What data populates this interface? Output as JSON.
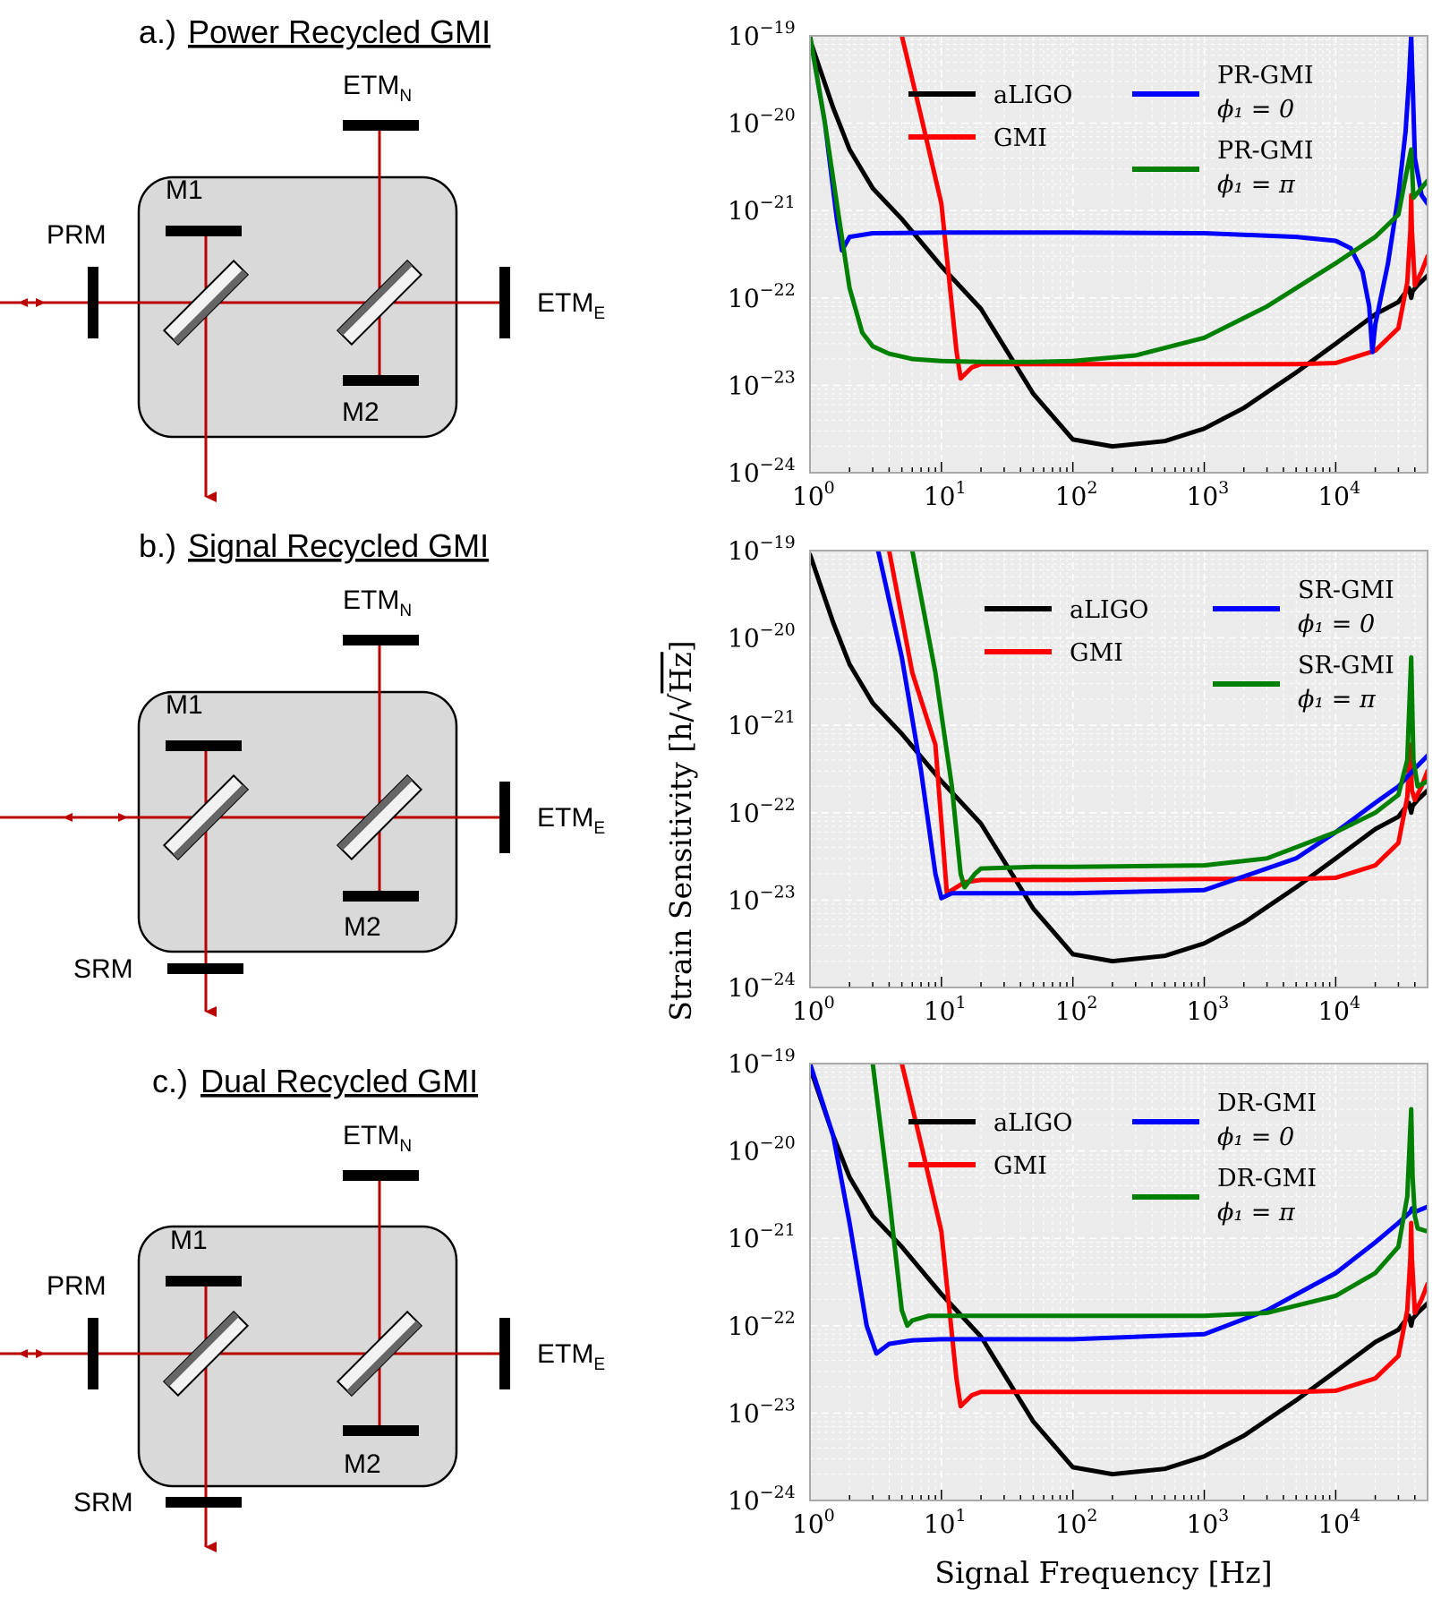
{
  "panels": [
    {
      "prefix": "a.)",
      "title": "Power Recycled GMI",
      "labels": {
        "etm_n": "ETM",
        "etm_n_sub": "N",
        "etm_e": "ETM",
        "etm_e_sub": "E",
        "m1": "M1",
        "m2": "M2",
        "prm": "PRM"
      }
    },
    {
      "prefix": "b.)",
      "title": "Signal Recycled GMI",
      "labels": {
        "etm_n": "ETM",
        "etm_n_sub": "N",
        "etm_e": "ETM",
        "etm_e_sub": "E",
        "m1": "M1",
        "m2": "M2",
        "srm": "SRM"
      }
    },
    {
      "prefix": "c.)",
      "title": "Dual Recycled GMI",
      "labels": {
        "etm_n": "ETM",
        "etm_n_sub": "N",
        "etm_e": "ETM",
        "etm_e_sub": "E",
        "m1": "M1",
        "m2": "M2",
        "prm": "PRM",
        "srm": "SRM"
      }
    }
  ],
  "axes": {
    "ylabel": "Strain Sensitivity",
    "ylabel_unit_num": "h",
    "ylabel_unit_den": "Hz",
    "xlabel": "Signal Frequency [Hz]"
  },
  "colors": {
    "aligo": "#000000",
    "gmi": "#ff0000",
    "phi0": "#0000ff",
    "phipi": "#008000",
    "beam": "#bb0000",
    "box": "#d9d9d9",
    "plotbg": "#ebebeb"
  },
  "chart_data": [
    {
      "type": "line",
      "title": "",
      "x_scale": "log",
      "y_scale": "log",
      "xlim": [
        1,
        50000
      ],
      "ylim": [
        1e-24,
        1e-19
      ],
      "xticks": [
        {
          "base": "10",
          "exp": "0"
        },
        {
          "base": "10",
          "exp": "1"
        },
        {
          "base": "10",
          "exp": "2"
        },
        {
          "base": "10",
          "exp": "3"
        },
        {
          "base": "10",
          "exp": "4"
        }
      ],
      "yticks": [
        {
          "base": "10",
          "exp": "−19"
        },
        {
          "base": "10",
          "exp": "−20"
        },
        {
          "base": "10",
          "exp": "−21"
        },
        {
          "base": "10",
          "exp": "−22"
        },
        {
          "base": "10",
          "exp": "−23"
        },
        {
          "base": "10",
          "exp": "−24"
        }
      ],
      "grid": true,
      "legend": [
        {
          "name": "aLIGO",
          "line2": ""
        },
        {
          "name": "GMI",
          "line2": ""
        },
        {
          "name": "PR-GMI",
          "line2": "ϕ₁ = 0"
        },
        {
          "name": "PR-GMI",
          "line2": "ϕ₁ = π"
        }
      ],
      "series": [
        {
          "name": "aLIGO",
          "x": [
            1,
            1.5,
            2,
            3,
            5,
            10,
            20,
            50,
            100,
            200,
            500,
            1000,
            2000,
            5000,
            10000,
            20000,
            30000,
            36000,
            37500,
            38500,
            42000,
            50000
          ],
          "y": [
            9e-20,
            1.5e-20,
            5e-21,
            1.8e-21,
            8e-22,
            2.3e-22,
            7.5e-23,
            8e-24,
            2.4e-24,
            2e-24,
            2.3e-24,
            3.2e-24,
            5.5e-24,
            1.4e-23,
            3e-23,
            6.5e-23,
            9e-23,
            1.3e-22,
            1e-22,
            1.2e-22,
            1.4e-22,
            1.8e-22
          ]
        },
        {
          "name": "GMI",
          "x": [
            5,
            7,
            10,
            13,
            14,
            17,
            20,
            50,
            100,
            1000,
            5000,
            10000,
            20000,
            30000,
            35000,
            37000,
            37500,
            38000,
            40000,
            45000,
            50000
          ],
          "y": [
            1e-19,
            1.2e-20,
            1.2e-21,
            2.5e-23,
            1.2e-23,
            1.6e-23,
            1.75e-23,
            1.75e-23,
            1.75e-23,
            1.75e-23,
            1.75e-23,
            1.8e-23,
            2.5e-23,
            4.5e-23,
            1.5e-22,
            6e-22,
            1.5e-21,
            6e-22,
            1.4e-22,
            2e-22,
            3e-22
          ]
        },
        {
          "name": "PR-GMI φ1=0",
          "x": [
            1,
            1.3,
            1.6,
            1.75,
            2,
            3,
            10,
            100,
            1000,
            5000,
            10000,
            13000,
            16000,
            18000,
            19000,
            20000,
            25000,
            30000,
            34000,
            36000,
            37500,
            38500,
            40000,
            45000,
            50000
          ],
          "y": [
            1e-19,
            1e-20,
            8e-22,
            3.5e-22,
            5e-22,
            5.5e-22,
            5.6e-22,
            5.6e-22,
            5.5e-22,
            5e-22,
            4.5e-22,
            3.7e-22,
            2e-22,
            8e-23,
            2.4e-23,
            5e-23,
            2.5e-22,
            1.5e-21,
            8e-21,
            3e-20,
            1e-19,
            3e-20,
            4e-21,
            1.5e-21,
            1.2e-21
          ]
        },
        {
          "name": "PR-GMI φ1=π",
          "x": [
            1,
            1.3,
            1.6,
            2,
            2.5,
            3,
            4,
            6,
            10,
            20,
            50,
            100,
            300,
            1000,
            3000,
            10000,
            20000,
            30000,
            35000,
            37500,
            39000,
            42000,
            50000
          ],
          "y": [
            1e-19,
            1e-20,
            1.2e-21,
            1.3e-22,
            4e-23,
            2.8e-23,
            2.3e-23,
            2e-23,
            1.9e-23,
            1.85e-23,
            1.85e-23,
            1.9e-23,
            2.2e-23,
            3.5e-23,
            8e-23,
            2.5e-22,
            5e-22,
            9e-22,
            3e-21,
            5e-21,
            1.4e-21,
            1.6e-21,
            2.2e-21
          ]
        }
      ]
    },
    {
      "type": "line",
      "title": "",
      "x_scale": "log",
      "y_scale": "log",
      "xlim": [
        1,
        50000
      ],
      "ylim": [
        1e-24,
        1e-19
      ],
      "xticks": [
        {
          "base": "10",
          "exp": "0"
        },
        {
          "base": "10",
          "exp": "1"
        },
        {
          "base": "10",
          "exp": "2"
        },
        {
          "base": "10",
          "exp": "3"
        },
        {
          "base": "10",
          "exp": "4"
        }
      ],
      "yticks": [
        {
          "base": "10",
          "exp": "−19"
        },
        {
          "base": "10",
          "exp": "−20"
        },
        {
          "base": "10",
          "exp": "−21"
        },
        {
          "base": "10",
          "exp": "−22"
        },
        {
          "base": "10",
          "exp": "−23"
        },
        {
          "base": "10",
          "exp": "−24"
        }
      ],
      "grid": true,
      "legend": [
        {
          "name": "aLIGO",
          "line2": ""
        },
        {
          "name": "GMI",
          "line2": ""
        },
        {
          "name": "SR-GMI",
          "line2": "ϕ₁ = 0"
        },
        {
          "name": "SR-GMI",
          "line2": "ϕ₁ = π"
        }
      ],
      "series": [
        {
          "name": "aLIGO",
          "x": [
            1,
            1.5,
            2,
            3,
            5,
            10,
            20,
            50,
            100,
            200,
            500,
            1000,
            2000,
            5000,
            10000,
            20000,
            30000,
            36000,
            37500,
            38500,
            42000,
            50000
          ],
          "y": [
            9e-20,
            1.5e-20,
            5e-21,
            1.8e-21,
            8e-22,
            2.3e-22,
            7.5e-23,
            8e-24,
            2.4e-24,
            2e-24,
            2.3e-24,
            3.2e-24,
            5.5e-24,
            1.4e-23,
            3e-23,
            6.5e-23,
            9e-23,
            1.3e-22,
            1e-22,
            1.2e-22,
            1.4e-22,
            1.8e-22
          ]
        },
        {
          "name": "GMI",
          "x": [
            4,
            6,
            9,
            11,
            12,
            15,
            20,
            50,
            100,
            1000,
            5000,
            10000,
            20000,
            30000,
            35000,
            37000,
            37500,
            38000,
            40000,
            45000,
            50000
          ],
          "y": [
            1e-19,
            4e-21,
            6e-22,
            1.2e-23,
            1.3e-23,
            1.6e-23,
            1.7e-23,
            1.7e-23,
            1.7e-23,
            1.75e-23,
            1.75e-23,
            1.8e-23,
            2.5e-23,
            4.5e-23,
            1.5e-22,
            6e-22,
            3e-22,
            1.8e-22,
            1.4e-22,
            2e-22,
            3e-22
          ]
        },
        {
          "name": "SR-GMI φ1=0",
          "x": [
            3.3,
            5,
            7,
            9,
            10,
            12,
            20,
            50,
            100,
            1000,
            5000,
            10000,
            20000,
            30000,
            40000,
            50000
          ],
          "y": [
            1e-19,
            6e-21,
            3e-22,
            2e-23,
            1.05e-23,
            1.2e-23,
            1.2e-23,
            1.2e-23,
            1.2e-23,
            1.3e-23,
            3e-23,
            6e-23,
            1.3e-22,
            2e-22,
            3.2e-22,
            4.5e-22
          ]
        },
        {
          "name": "SR-GMI φ1=π",
          "x": [
            6,
            9,
            12,
            14,
            15,
            18,
            20,
            50,
            100,
            1000,
            3000,
            10000,
            20000,
            30000,
            35000,
            37500,
            39000,
            42000,
            50000
          ],
          "y": [
            1e-19,
            4e-21,
            2e-22,
            2e-23,
            1.4e-23,
            2e-23,
            2.3e-23,
            2.4e-23,
            2.4e-23,
            2.5e-23,
            3e-23,
            6e-23,
            1e-22,
            1.6e-22,
            4e-22,
            6e-21,
            4e-22,
            2e-22,
            2.3e-22
          ]
        }
      ]
    },
    {
      "type": "line",
      "title": "",
      "x_scale": "log",
      "y_scale": "log",
      "xlim": [
        1,
        50000
      ],
      "ylim": [
        1e-24,
        1e-19
      ],
      "xticks": [
        {
          "base": "10",
          "exp": "0"
        },
        {
          "base": "10",
          "exp": "1"
        },
        {
          "base": "10",
          "exp": "2"
        },
        {
          "base": "10",
          "exp": "3"
        },
        {
          "base": "10",
          "exp": "4"
        }
      ],
      "yticks": [
        {
          "base": "10",
          "exp": "−19"
        },
        {
          "base": "10",
          "exp": "−20"
        },
        {
          "base": "10",
          "exp": "−21"
        },
        {
          "base": "10",
          "exp": "−22"
        },
        {
          "base": "10",
          "exp": "−23"
        },
        {
          "base": "10",
          "exp": "−24"
        }
      ],
      "grid": true,
      "legend": [
        {
          "name": "aLIGO",
          "line2": ""
        },
        {
          "name": "GMI",
          "line2": ""
        },
        {
          "name": "DR-GMI",
          "line2": "ϕ₁ = 0"
        },
        {
          "name": "DR-GMI",
          "line2": "ϕ₁ = π"
        }
      ],
      "series": [
        {
          "name": "aLIGO",
          "x": [
            1,
            1.5,
            2,
            3,
            5,
            10,
            20,
            50,
            100,
            200,
            500,
            1000,
            2000,
            5000,
            10000,
            20000,
            30000,
            36000,
            37500,
            38500,
            42000,
            50000
          ],
          "y": [
            9e-20,
            1.5e-20,
            5e-21,
            1.8e-21,
            8e-22,
            2.3e-22,
            7.5e-23,
            8e-24,
            2.4e-24,
            2e-24,
            2.3e-24,
            3.2e-24,
            5.5e-24,
            1.4e-23,
            3e-23,
            6.5e-23,
            9e-23,
            1.3e-22,
            1e-22,
            1.2e-22,
            1.4e-22,
            1.8e-22
          ]
        },
        {
          "name": "GMI",
          "x": [
            5,
            7,
            10,
            13,
            14,
            17,
            20,
            50,
            100,
            1000,
            5000,
            10000,
            20000,
            30000,
            35000,
            37000,
            37500,
            38000,
            40000,
            45000,
            50000
          ],
          "y": [
            1e-19,
            1.2e-20,
            1.2e-21,
            2.5e-23,
            1.2e-23,
            1.6e-23,
            1.75e-23,
            1.75e-23,
            1.75e-23,
            1.75e-23,
            1.75e-23,
            1.8e-23,
            2.5e-23,
            4.5e-23,
            1.5e-22,
            6e-22,
            1.5e-21,
            6e-22,
            1.4e-22,
            2e-22,
            3e-22
          ]
        },
        {
          "name": "DR-GMI φ1=0",
          "x": [
            1,
            1.5,
            2,
            2.7,
            3.2,
            4,
            6,
            10,
            100,
            1000,
            3000,
            10000,
            20000,
            30000,
            37000,
            38000,
            40000,
            50000
          ],
          "y": [
            1e-19,
            1.5e-20,
            1.5e-21,
            1e-22,
            4.8e-23,
            6.2e-23,
            6.8e-23,
            7e-23,
            7e-23,
            8e-23,
            1.5e-22,
            4e-22,
            9e-22,
            1.5e-21,
            2e-21,
            2.2e-21,
            2e-21,
            2.3e-21
          ]
        },
        {
          "name": "DR-GMI φ1=π",
          "x": [
            3,
            4,
            5,
            5.5,
            6,
            8,
            10,
            100,
            1000,
            3000,
            10000,
            20000,
            30000,
            35000,
            37500,
            38500,
            40000,
            42000,
            50000
          ],
          "y": [
            1e-19,
            3e-21,
            1.5e-22,
            1e-22,
            1.15e-22,
            1.3e-22,
            1.3e-22,
            1.3e-22,
            1.3e-22,
            1.4e-22,
            2.2e-22,
            4e-22,
            8e-22,
            3e-21,
            3e-20,
            5e-21,
            1.8e-21,
            1.3e-21,
            1.2e-21
          ]
        }
      ]
    }
  ]
}
